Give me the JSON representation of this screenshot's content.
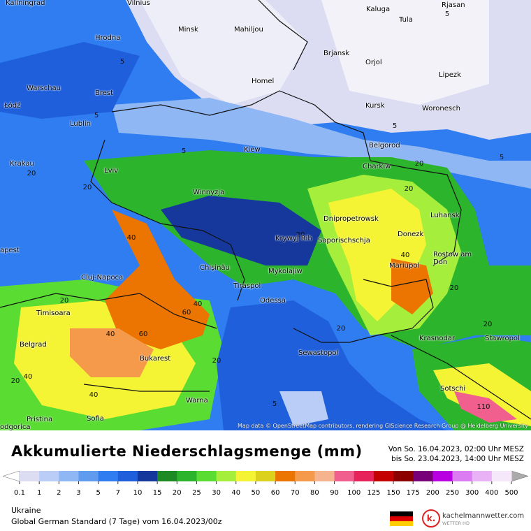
{
  "map": {
    "cities": [
      "Kaliningrad",
      "Vilnius",
      "Minsk",
      "Mahiljou",
      "Kaluga",
      "Tula",
      "Rjasan",
      "Hrodna",
      "Brjansk",
      "Orjol",
      "Lipezk",
      "Homel",
      "Warschau",
      "Brest",
      "Łódź",
      "Kursk",
      "Woronesch",
      "Lublin",
      "Belgorod",
      "Kiew",
      "Krakau",
      "Charkiw",
      "Lviv",
      "Winnyzja",
      "Luhansk",
      "Dnipropetrowsk",
      "Krywyj Rih",
      "Saporischschja",
      "Donezk",
      "Rostow am Don",
      "apest",
      "Chișinău",
      "Mykolajiw",
      "Mariupol",
      "Cluj-Napoca",
      "Tiraspol",
      "Odessa",
      "Timisoara",
      "Krasnodar",
      "Stawropol",
      "Belgrad",
      "Sewastopol",
      "Bukarest",
      "Sotschi",
      "Warna",
      "Pristina",
      "Sofia",
      "odgorica"
    ],
    "contour_labels": [
      5,
      5,
      5,
      5,
      5,
      5,
      20,
      20,
      20,
      20,
      40,
      40,
      60,
      40,
      60,
      40,
      20,
      20,
      20,
      40,
      20,
      20,
      40,
      110,
      5,
      20,
      20
    ],
    "attribution": "Map data © OpenStreetMap contributors, rendering GIScience Research Group @ Heidelberg University"
  },
  "legend": {
    "title": "Akkumulierte Niederschlagsmenge (mm)",
    "ticks": [
      0.1,
      1,
      2,
      3,
      5,
      7,
      10,
      15,
      20,
      25,
      30,
      40,
      50,
      60,
      70,
      80,
      90,
      100,
      125,
      150,
      175,
      200,
      250,
      300,
      400,
      500
    ],
    "colors": [
      "#dcdcf2",
      "#b9cdf6",
      "#8fb7f4",
      "#5f9bef",
      "#2f7df0",
      "#1f5fdc",
      "#16389c",
      "#1d8a24",
      "#2cb42c",
      "#5adc32",
      "#a6ee3c",
      "#f4f434",
      "#dcd21e",
      "#ec7400",
      "#f59a4a",
      "#f6b48e",
      "#f05f8e",
      "#e6235a",
      "#c40000",
      "#8c0000",
      "#780078",
      "#b800e0",
      "#dc7cf2",
      "#eab2f6",
      "#f6e8fb"
    ],
    "under_color": "#ffffff",
    "over_color": "#aaaaaa"
  },
  "period": {
    "from": "Von So. 16.04.2023, 02:00 Uhr MESZ",
    "to": "bis So. 23.04.2023, 14:00 Uhr MESZ"
  },
  "footer": {
    "region": "Ukraine",
    "model": "Global German Standard (7 Tage) vom 16.04.2023/00z"
  },
  "logo": {
    "mark": "k.",
    "name": "kachelmannwetter.com",
    "tagline": "WETTER HD"
  }
}
